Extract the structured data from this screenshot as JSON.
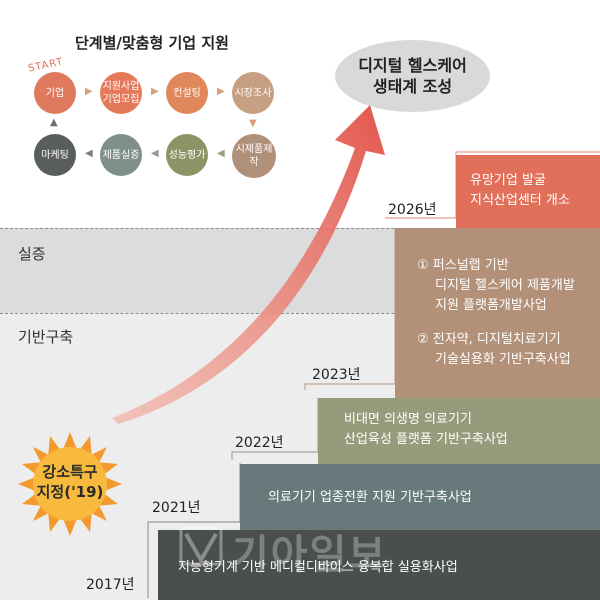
{
  "process": {
    "title": "단계별/맞춤형 기업 지원",
    "start_label": "START",
    "steps": [
      {
        "label": "기업"
      },
      {
        "label": "지원사업\n기업모집"
      },
      {
        "label": "컨설팅"
      },
      {
        "label": "시장조사"
      },
      {
        "label": "시제품제작"
      },
      {
        "label": "성능평가"
      },
      {
        "label": "제품실증"
      },
      {
        "label": "마케팅"
      }
    ]
  },
  "goal": {
    "line1": "디지털 헬스케어",
    "line2": "생태계 조성"
  },
  "zones": {
    "demo": "실증",
    "infra": "기반구축"
  },
  "origin": {
    "line1": "강소특구",
    "line2": "지정('19)"
  },
  "years": [
    "2017년",
    "2021년",
    "2022년",
    "2023년",
    "2026년"
  ],
  "stages": [
    {
      "year": "2017년",
      "lines": [
        "지능형기계 기반 메디컬디바이스 융복합 실용화사업"
      ],
      "color": "#4a4f4d"
    },
    {
      "year": "2021년",
      "lines": [
        "의료기기 업종전환 지원 기반구축사업"
      ],
      "color": "#67797a"
    },
    {
      "year": "2022년",
      "lines": [
        "비대면 의생명 의료기기",
        "산업육성 플랫폼 기반구축사업"
      ],
      "color": "#949c7b"
    },
    {
      "year": "2023년",
      "lines": [
        "① 퍼스널랩 기반",
        "디지털 헬스케어 제품개발",
        "지원 플랫폼개발사업",
        "② 전자약, 디지털치료기기",
        "기술실용화 기반구축사업"
      ],
      "color": "#b39178"
    },
    {
      "year": "2026년",
      "lines": [
        "유망기업 발굴",
        "지식산업센터 개소"
      ],
      "color": "#e0705a"
    }
  ],
  "watermark": "기아일보"
}
